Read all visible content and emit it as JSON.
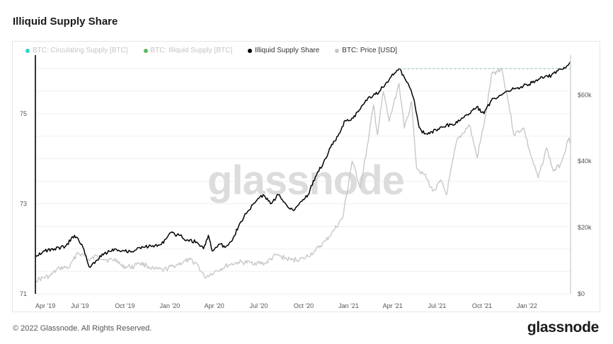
{
  "header": {
    "title": "Illiquid Supply Share"
  },
  "footer": {
    "copyright": "© 2022 Glassnode. All Rights Reserved.",
    "logo_text": "glassnode"
  },
  "watermark": "glassnode",
  "legend": [
    {
      "label": "BTC: Circulating Supply [BTC]",
      "color": "#2fd3c8",
      "state": "dim"
    },
    {
      "label": "BTC: Illiquid Supply [BTC]",
      "color": "#5cb85c",
      "state": "dim"
    },
    {
      "label": "Illiquid Supply Share",
      "color": "#000000",
      "state": "active"
    },
    {
      "label": "BTC: Price [USD]",
      "color": "#c8c8c8",
      "state": "active"
    }
  ],
  "chart_data": {
    "type": "line",
    "title": "Illiquid Supply Share",
    "x_tick_labels": [
      "Apr '19",
      "Jul '19",
      "Oct '19",
      "Jan '20",
      "Apr '20",
      "Jul '20",
      "Oct '20",
      "Jan '21",
      "Apr '21",
      "Jul '21",
      "Oct '21",
      "Jan '22"
    ],
    "x_range": [
      "2019-04-01",
      "2022-03-31"
    ],
    "y_left": {
      "ticks": [
        "71",
        "73",
        "75"
      ],
      "range": [
        71,
        76.3
      ]
    },
    "y_right": {
      "ticks": [
        "$0",
        "$20k",
        "$40k",
        "$60k"
      ],
      "range": [
        0,
        72000
      ]
    },
    "grid": "horizontal",
    "annotation": {
      "type": "dashed-line",
      "from": "2021-04-14",
      "to": "2022-03-31",
      "value": 76.0,
      "color": "#8fb8b8"
    },
    "series": [
      {
        "name": "Illiquid Supply Share",
        "axis": "left",
        "color": "#000000",
        "points": [
          [
            "2019-04-01",
            71.85
          ],
          [
            "2019-04-20",
            71.95
          ],
          [
            "2019-05-10",
            72.0
          ],
          [
            "2019-06-01",
            72.05
          ],
          [
            "2019-06-20",
            72.3
          ],
          [
            "2019-07-05",
            72.1
          ],
          [
            "2019-07-20",
            71.6
          ],
          [
            "2019-08-05",
            71.75
          ],
          [
            "2019-08-20",
            71.9
          ],
          [
            "2019-09-10",
            72.0
          ],
          [
            "2019-10-01",
            71.95
          ],
          [
            "2019-10-20",
            71.95
          ],
          [
            "2019-11-05",
            72.05
          ],
          [
            "2019-11-25",
            72.05
          ],
          [
            "2019-12-15",
            72.1
          ],
          [
            "2020-01-01",
            72.35
          ],
          [
            "2020-01-20",
            72.3
          ],
          [
            "2020-02-05",
            72.2
          ],
          [
            "2020-02-25",
            72.15
          ],
          [
            "2020-03-10",
            72.0
          ],
          [
            "2020-03-20",
            72.3
          ],
          [
            "2020-03-28",
            71.95
          ],
          [
            "2020-04-10",
            72.1
          ],
          [
            "2020-04-25",
            72.05
          ],
          [
            "2020-05-10",
            72.25
          ],
          [
            "2020-05-25",
            72.6
          ],
          [
            "2020-06-10",
            72.85
          ],
          [
            "2020-06-25",
            73.05
          ],
          [
            "2020-07-10",
            73.2
          ],
          [
            "2020-07-25",
            73.0
          ],
          [
            "2020-08-10",
            73.2
          ],
          [
            "2020-08-25",
            73.0
          ],
          [
            "2020-09-10",
            72.85
          ],
          [
            "2020-09-25",
            73.05
          ],
          [
            "2020-10-10",
            73.2
          ],
          [
            "2020-10-25",
            73.6
          ],
          [
            "2020-11-10",
            73.9
          ],
          [
            "2020-11-25",
            74.25
          ],
          [
            "2020-12-10",
            74.5
          ],
          [
            "2020-12-25",
            74.85
          ],
          [
            "2021-01-10",
            74.9
          ],
          [
            "2021-01-25",
            75.1
          ],
          [
            "2021-02-05",
            75.3
          ],
          [
            "2021-02-20",
            75.4
          ],
          [
            "2021-03-05",
            75.5
          ],
          [
            "2021-03-20",
            75.7
          ],
          [
            "2021-04-05",
            75.9
          ],
          [
            "2021-04-14",
            76.0
          ],
          [
            "2021-04-25",
            75.8
          ],
          [
            "2021-05-05",
            75.6
          ],
          [
            "2021-05-15",
            75.3
          ],
          [
            "2021-05-25",
            74.7
          ],
          [
            "2021-06-05",
            74.55
          ],
          [
            "2021-06-20",
            74.6
          ],
          [
            "2021-07-05",
            74.65
          ],
          [
            "2021-07-20",
            74.75
          ],
          [
            "2021-08-05",
            74.75
          ],
          [
            "2021-08-20",
            74.9
          ],
          [
            "2021-09-05",
            75.0
          ],
          [
            "2021-09-20",
            75.15
          ],
          [
            "2021-10-05",
            75.0
          ],
          [
            "2021-10-20",
            75.3
          ],
          [
            "2021-11-05",
            75.4
          ],
          [
            "2021-11-20",
            75.5
          ],
          [
            "2021-12-05",
            75.55
          ],
          [
            "2021-12-20",
            75.6
          ],
          [
            "2022-01-05",
            75.65
          ],
          [
            "2022-01-20",
            75.75
          ],
          [
            "2022-02-05",
            75.8
          ],
          [
            "2022-02-20",
            75.85
          ],
          [
            "2022-03-05",
            75.95
          ],
          [
            "2022-03-20",
            76.0
          ],
          [
            "2022-03-31",
            76.15
          ]
        ]
      },
      {
        "name": "BTC: Price [USD]",
        "axis": "right",
        "color": "#c8c8c8",
        "points": [
          [
            "2019-04-01",
            4100
          ],
          [
            "2019-05-01",
            5400
          ],
          [
            "2019-05-20",
            7800
          ],
          [
            "2019-06-10",
            8000
          ],
          [
            "2019-06-26",
            12500
          ],
          [
            "2019-07-10",
            11500
          ],
          [
            "2019-07-20",
            10000
          ],
          [
            "2019-08-05",
            11500
          ],
          [
            "2019-08-25",
            10200
          ],
          [
            "2019-09-15",
            10300
          ],
          [
            "2019-09-25",
            8200
          ],
          [
            "2019-10-20",
            8200
          ],
          [
            "2019-10-27",
            9500
          ],
          [
            "2019-11-15",
            8500
          ],
          [
            "2019-12-01",
            7400
          ],
          [
            "2019-12-20",
            7200
          ],
          [
            "2020-01-15",
            8800
          ],
          [
            "2020-02-10",
            10200
          ],
          [
            "2020-02-25",
            9200
          ],
          [
            "2020-03-12",
            5000
          ],
          [
            "2020-04-01",
            6600
          ],
          [
            "2020-04-30",
            8700
          ],
          [
            "2020-05-20",
            9500
          ],
          [
            "2020-06-15",
            9400
          ],
          [
            "2020-07-15",
            9200
          ],
          [
            "2020-08-05",
            11700
          ],
          [
            "2020-09-05",
            10200
          ],
          [
            "2020-10-01",
            10600
          ],
          [
            "2020-10-25",
            13000
          ],
          [
            "2020-11-15",
            16000
          ],
          [
            "2020-12-01",
            19000
          ],
          [
            "2020-12-20",
            23000
          ],
          [
            "2021-01-08",
            40000
          ],
          [
            "2021-01-25",
            32000
          ],
          [
            "2021-02-10",
            46000
          ],
          [
            "2021-02-21",
            57000
          ],
          [
            "2021-03-01",
            48000
          ],
          [
            "2021-03-13",
            61000
          ],
          [
            "2021-03-25",
            52000
          ],
          [
            "2021-04-14",
            63500
          ],
          [
            "2021-04-25",
            50000
          ],
          [
            "2021-05-10",
            58000
          ],
          [
            "2021-05-20",
            38000
          ],
          [
            "2021-06-05",
            36000
          ],
          [
            "2021-06-22",
            31000
          ],
          [
            "2021-07-10",
            34000
          ],
          [
            "2021-07-20",
            29800
          ],
          [
            "2021-08-10",
            46000
          ],
          [
            "2021-09-05",
            51000
          ],
          [
            "2021-09-21",
            41000
          ],
          [
            "2021-10-10",
            55000
          ],
          [
            "2021-10-20",
            66000
          ],
          [
            "2021-11-10",
            68000
          ],
          [
            "2021-11-25",
            57000
          ],
          [
            "2021-12-05",
            48000
          ],
          [
            "2021-12-25",
            50000
          ],
          [
            "2022-01-10",
            41000
          ],
          [
            "2022-01-24",
            35000
          ],
          [
            "2022-02-10",
            44000
          ],
          [
            "2022-02-24",
            37000
          ],
          [
            "2022-03-10",
            39000
          ],
          [
            "2022-03-28",
            47000
          ],
          [
            "2022-03-31",
            45500
          ]
        ]
      }
    ]
  }
}
